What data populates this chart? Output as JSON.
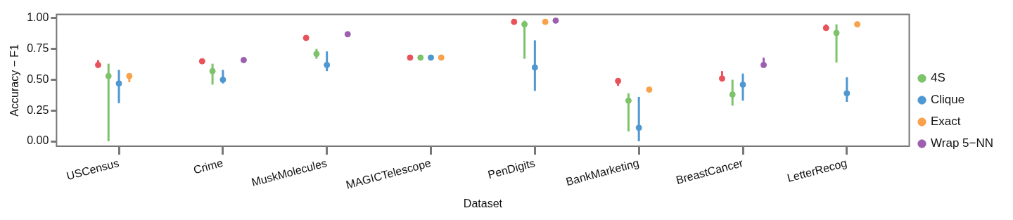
{
  "chart_data": {
    "type": "scatter",
    "xlabel": "Dataset",
    "ylabel": "Accuracy − F1",
    "categories": [
      "USCensus",
      "Crime",
      "MuskMolecules",
      "MAGICTelescope",
      "PenDigits",
      "BankMarketing",
      "BreastCancer",
      "LetterRecog"
    ],
    "ylim": [
      -0.04,
      1.03
    ],
    "yticks": [
      {
        "value": 0,
        "label": "0.00"
      },
      {
        "value": 0.25,
        "label": "0.25"
      },
      {
        "value": 0.5,
        "label": "0.50"
      },
      {
        "value": 0.75,
        "label": "0.75"
      },
      {
        "value": 1,
        "label": "1.00"
      }
    ],
    "legend": "right",
    "marker": "circle",
    "series": [
      {
        "color": "#e8525a",
        "values": [
          0.62,
          0.65,
          0.84,
          0.68,
          0.97,
          0.49,
          0.51,
          0.92
        ],
        "errors": [
          [
            0.62,
            0.66
          ],
          null,
          null,
          null,
          null,
          [
            0.45,
            0.49
          ],
          [
            0.51,
            0.57
          ],
          [
            0.92,
            0.95
          ]
        ]
      },
      {
        "name": "4S",
        "color": "#7cc36a",
        "values": [
          0.53,
          0.57,
          0.71,
          0.68,
          0.95,
          0.33,
          0.38,
          0.88
        ],
        "errors": [
          [
            0.0,
            0.63
          ],
          [
            0.46,
            0.63
          ],
          [
            0.67,
            0.75
          ],
          null,
          [
            0.67,
            0.98
          ],
          [
            0.08,
            0.39
          ],
          [
            0.29,
            0.5
          ],
          [
            0.64,
            0.95
          ]
        ]
      },
      {
        "name": "Clique",
        "color": "#4e97d1",
        "values": [
          0.47,
          0.5,
          0.62,
          0.68,
          0.6,
          0.11,
          0.46,
          0.39
        ],
        "errors": [
          [
            0.31,
            0.58
          ],
          [
            0.47,
            0.58
          ],
          [
            0.57,
            0.73
          ],
          null,
          [
            0.41,
            0.82
          ],
          [
            0.0,
            0.36
          ],
          [
            0.33,
            0.55
          ],
          [
            0.32,
            0.52
          ]
        ]
      },
      {
        "name": "Exact",
        "color": "#f9a24b",
        "values": [
          0.53,
          null,
          null,
          0.68,
          0.97,
          0.42,
          null,
          0.95
        ],
        "errors": [
          [
            0.48,
            0.53
          ],
          null,
          null,
          null,
          null,
          null,
          null,
          null
        ]
      },
      {
        "name": "Wrap 5−NN",
        "color": "#9c5fb0",
        "values": [
          null,
          0.66,
          0.87,
          null,
          0.98,
          null,
          0.62,
          null
        ],
        "errors": [
          null,
          null,
          null,
          null,
          null,
          null,
          [
            0.62,
            0.68
          ],
          null
        ]
      }
    ]
  }
}
